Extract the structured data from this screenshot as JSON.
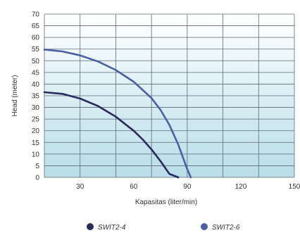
{
  "chart_data": {
    "type": "line",
    "title": "",
    "xlabel": "Kapasitas (liter/min)",
    "ylabel": "Head (meter)",
    "xlim": [
      10,
      150
    ],
    "ylim": [
      0,
      70
    ],
    "x_ticks": [
      30,
      60,
      90,
      120,
      150
    ],
    "y_ticks": [
      0,
      5,
      10,
      15,
      20,
      25,
      30,
      35,
      40,
      45,
      50,
      55,
      60,
      65,
      70
    ],
    "grid": true,
    "legend_position": "bottom",
    "series": [
      {
        "name": "SWIT2-4",
        "color": "#2a2a5e",
        "x": [
          10,
          20,
          30,
          40,
          50,
          60,
          65,
          70,
          75,
          80,
          85
        ],
        "y": [
          36.5,
          35.8,
          33.8,
          30.6,
          26.0,
          20.0,
          16.3,
          12.0,
          7.0,
          1.5,
          0
        ]
      },
      {
        "name": "SWIT2-6",
        "color": "#4a5fa8",
        "x": [
          10,
          20,
          30,
          40,
          50,
          60,
          70,
          75,
          80,
          85,
          90,
          92
        ],
        "y": [
          54.8,
          54.0,
          52.3,
          49.7,
          46.0,
          41.0,
          34.0,
          29.0,
          22.5,
          14.0,
          3.5,
          0
        ]
      }
    ]
  }
}
